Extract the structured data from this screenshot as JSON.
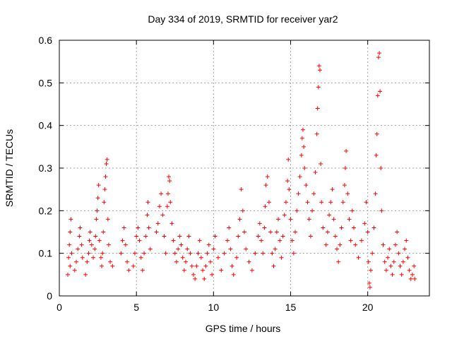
{
  "chart_data": {
    "type": "scatter",
    "title": "Day 334 of 2019, SRMTID for receiver yar2",
    "xlabel": "GPS time / hours",
    "ylabel": "SRMTID / TECUs",
    "xlim": [
      0,
      24
    ],
    "ylim": [
      0,
      0.6
    ],
    "xticks": [
      0,
      5,
      10,
      15,
      20
    ],
    "yticks": [
      0,
      0.1,
      0.2,
      0.3,
      0.4,
      0.5,
      0.6
    ],
    "grid": true,
    "marker": "+",
    "color": "#ff0000",
    "series": [
      {
        "name": "SRMTID",
        "points": [
          [
            0.55,
            0.05
          ],
          [
            0.6,
            0.09
          ],
          [
            0.65,
            0.12
          ],
          [
            0.7,
            0.15
          ],
          [
            0.75,
            0.18
          ],
          [
            0.8,
            0.1
          ],
          [
            0.7,
            0.07
          ],
          [
            1.0,
            0.06
          ],
          [
            1.1,
            0.08
          ],
          [
            1.2,
            0.11
          ],
          [
            1.3,
            0.14
          ],
          [
            1.35,
            0.16
          ],
          [
            1.45,
            0.12
          ],
          [
            1.5,
            0.09
          ],
          [
            1.7,
            0.05
          ],
          [
            1.8,
            0.08
          ],
          [
            1.9,
            0.1
          ],
          [
            1.95,
            0.13
          ],
          [
            2.0,
            0.15
          ],
          [
            2.1,
            0.12
          ],
          [
            2.2,
            0.09
          ],
          [
            2.3,
            0.11
          ],
          [
            2.35,
            0.14
          ],
          [
            2.4,
            0.18
          ],
          [
            2.45,
            0.2
          ],
          [
            2.5,
            0.23
          ],
          [
            2.55,
            0.26
          ],
          [
            2.6,
            0.13
          ],
          [
            2.7,
            0.09
          ],
          [
            2.75,
            0.07
          ],
          [
            2.8,
            0.1
          ],
          [
            2.85,
            0.15
          ],
          [
            2.9,
            0.22
          ],
          [
            2.95,
            0.25
          ],
          [
            3.0,
            0.28
          ],
          [
            3.05,
            0.31
          ],
          [
            3.1,
            0.32
          ],
          [
            3.15,
            0.18
          ],
          [
            3.2,
            0.12
          ],
          [
            3.3,
            0.08
          ],
          [
            3.45,
            0.07
          ],
          [
            4.0,
            0.1
          ],
          [
            4.1,
            0.13
          ],
          [
            4.2,
            0.16
          ],
          [
            4.3,
            0.12
          ],
          [
            4.4,
            0.08
          ],
          [
            4.5,
            0.06
          ],
          [
            4.8,
            0.07
          ],
          [
            4.9,
            0.1
          ],
          [
            5.0,
            0.14
          ],
          [
            5.1,
            0.16
          ],
          [
            5.2,
            0.13
          ],
          [
            5.3,
            0.09
          ],
          [
            5.4,
            0.06
          ],
          [
            5.5,
            0.1
          ],
          [
            5.6,
            0.14
          ],
          [
            5.7,
            0.19
          ],
          [
            5.75,
            0.22
          ],
          [
            5.8,
            0.16
          ],
          [
            5.9,
            0.11
          ],
          [
            6.3,
            0.15
          ],
          [
            6.4,
            0.17
          ],
          [
            6.5,
            0.21
          ],
          [
            6.6,
            0.24
          ],
          [
            6.7,
            0.19
          ],
          [
            6.8,
            0.14
          ],
          [
            6.9,
            0.1
          ],
          [
            7.0,
            0.21
          ],
          [
            7.05,
            0.24
          ],
          [
            7.1,
            0.28
          ],
          [
            7.15,
            0.27
          ],
          [
            7.2,
            0.22
          ],
          [
            7.3,
            0.17
          ],
          [
            7.4,
            0.13
          ],
          [
            7.5,
            0.1
          ],
          [
            7.6,
            0.08
          ],
          [
            7.7,
            0.11
          ],
          [
            7.8,
            0.14
          ],
          [
            7.9,
            0.12
          ],
          [
            8.0,
            0.09
          ],
          [
            8.1,
            0.06
          ],
          [
            8.2,
            0.08
          ],
          [
            8.3,
            0.11
          ],
          [
            8.4,
            0.14
          ],
          [
            8.5,
            0.1
          ],
          [
            8.6,
            0.07
          ],
          [
            8.7,
            0.05
          ],
          [
            8.8,
            0.04
          ],
          [
            8.9,
            0.07
          ],
          [
            9.0,
            0.1
          ],
          [
            9.1,
            0.13
          ],
          [
            9.2,
            0.09
          ],
          [
            9.3,
            0.06
          ],
          [
            9.4,
            0.04
          ],
          [
            9.5,
            0.07
          ],
          [
            9.6,
            0.1
          ],
          [
            9.7,
            0.12
          ],
          [
            9.8,
            0.08
          ],
          [
            9.9,
            0.05
          ],
          [
            10.0,
            0.11
          ],
          [
            10.1,
            0.14
          ],
          [
            10.3,
            0.09
          ],
          [
            10.5,
            0.06
          ],
          [
            10.7,
            0.1
          ],
          [
            10.9,
            0.13
          ],
          [
            11.0,
            0.16
          ],
          [
            11.1,
            0.11
          ],
          [
            11.2,
            0.07
          ],
          [
            11.3,
            0.05
          ],
          [
            11.5,
            0.09
          ],
          [
            11.6,
            0.14
          ],
          [
            11.7,
            0.18
          ],
          [
            11.8,
            0.25
          ],
          [
            11.9,
            0.2
          ],
          [
            12.0,
            0.15
          ],
          [
            12.1,
            0.11
          ],
          [
            12.3,
            0.08
          ],
          [
            12.5,
            0.06
          ],
          [
            12.7,
            0.1
          ],
          [
            12.9,
            0.14
          ],
          [
            13.0,
            0.17
          ],
          [
            13.1,
            0.13
          ],
          [
            13.2,
            0.1
          ],
          [
            13.3,
            0.16
          ],
          [
            13.35,
            0.21
          ],
          [
            13.4,
            0.26
          ],
          [
            13.5,
            0.28
          ],
          [
            13.6,
            0.22
          ],
          [
            13.7,
            0.15
          ],
          [
            13.8,
            0.1
          ],
          [
            13.9,
            0.07
          ],
          [
            14.0,
            0.11
          ],
          [
            14.1,
            0.15
          ],
          [
            14.2,
            0.18
          ],
          [
            14.3,
            0.13
          ],
          [
            14.4,
            0.09
          ],
          [
            14.5,
            0.14
          ],
          [
            14.6,
            0.19
          ],
          [
            14.7,
            0.22
          ],
          [
            14.8,
            0.27
          ],
          [
            14.85,
            0.32
          ],
          [
            14.9,
            0.25
          ],
          [
            15.0,
            0.18
          ],
          [
            15.1,
            0.13
          ],
          [
            15.2,
            0.1
          ],
          [
            15.3,
            0.15
          ],
          [
            15.4,
            0.2
          ],
          [
            15.5,
            0.24
          ],
          [
            15.6,
            0.28
          ],
          [
            15.7,
            0.33
          ],
          [
            15.75,
            0.37
          ],
          [
            15.8,
            0.39
          ],
          [
            15.85,
            0.35
          ],
          [
            15.9,
            0.3
          ],
          [
            16.0,
            0.26
          ],
          [
            16.1,
            0.22
          ],
          [
            16.2,
            0.18
          ],
          [
            16.3,
            0.14
          ],
          [
            16.4,
            0.2
          ],
          [
            16.5,
            0.24
          ],
          [
            16.6,
            0.29
          ],
          [
            16.7,
            0.38
          ],
          [
            16.75,
            0.44
          ],
          [
            16.8,
            0.49
          ],
          [
            16.85,
            0.54
          ],
          [
            16.9,
            0.53
          ],
          [
            16.95,
            0.31
          ],
          [
            17.0,
            0.22
          ],
          [
            17.1,
            0.16
          ],
          [
            17.3,
            0.12
          ],
          [
            17.4,
            0.15
          ],
          [
            17.5,
            0.19
          ],
          [
            17.6,
            0.22
          ],
          [
            17.7,
            0.25
          ],
          [
            17.8,
            0.18
          ],
          [
            17.9,
            0.14
          ],
          [
            18.0,
            0.11
          ],
          [
            18.1,
            0.08
          ],
          [
            18.2,
            0.12
          ],
          [
            18.3,
            0.16
          ],
          [
            18.4,
            0.22
          ],
          [
            18.5,
            0.26
          ],
          [
            18.55,
            0.3
          ],
          [
            18.6,
            0.34
          ],
          [
            18.7,
            0.24
          ],
          [
            18.8,
            0.18
          ],
          [
            18.9,
            0.13
          ],
          [
            19.0,
            0.2
          ],
          [
            19.1,
            0.16
          ],
          [
            19.2,
            0.12
          ],
          [
            19.4,
            0.09
          ],
          [
            19.6,
            0.13
          ],
          [
            19.8,
            0.17
          ],
          [
            19.9,
            0.22
          ],
          [
            20.0,
            0.15
          ],
          [
            20.05,
            0.08
          ],
          [
            20.1,
            0.03
          ],
          [
            20.15,
            0.02
          ],
          [
            20.2,
            0.06
          ],
          [
            20.3,
            0.1
          ],
          [
            20.4,
            0.16
          ],
          [
            20.5,
            0.24
          ],
          [
            20.55,
            0.33
          ],
          [
            20.6,
            0.38
          ],
          [
            20.65,
            0.47
          ],
          [
            20.7,
            0.56
          ],
          [
            20.75,
            0.57
          ],
          [
            20.8,
            0.48
          ],
          [
            20.85,
            0.3
          ],
          [
            20.9,
            0.2
          ],
          [
            21.0,
            0.12
          ],
          [
            21.1,
            0.08
          ],
          [
            21.2,
            0.06
          ],
          [
            21.3,
            0.09
          ],
          [
            21.4,
            0.11
          ],
          [
            21.5,
            0.07
          ],
          [
            21.6,
            0.05
          ],
          [
            21.7,
            0.08
          ],
          [
            21.8,
            0.12
          ],
          [
            21.9,
            0.15
          ],
          [
            22.0,
            0.1
          ],
          [
            22.1,
            0.07
          ],
          [
            22.2,
            0.05
          ],
          [
            22.3,
            0.08
          ],
          [
            22.4,
            0.11
          ],
          [
            22.5,
            0.13
          ],
          [
            22.6,
            0.09
          ],
          [
            22.7,
            0.06
          ],
          [
            22.8,
            0.04
          ],
          [
            22.9,
            0.05
          ],
          [
            23.0,
            0.07
          ],
          [
            23.05,
            0.04
          ]
        ]
      }
    ]
  }
}
